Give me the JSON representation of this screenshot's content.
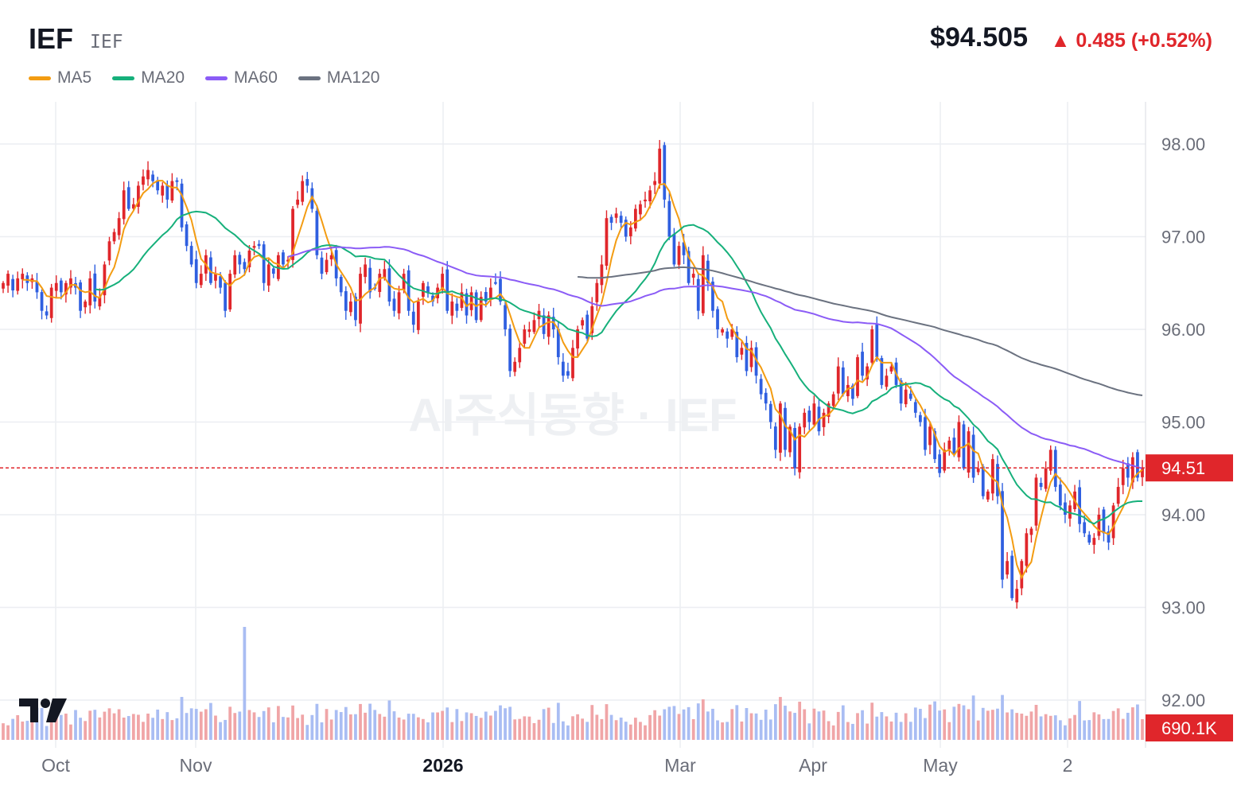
{
  "header": {
    "symbol": "IEF",
    "exchange": "IEF",
    "price": "$94.505",
    "change_arrow": "▲",
    "change": "0.485 (+0.52%)"
  },
  "legend": [
    {
      "label": "MA5",
      "color": "#f39c12"
    },
    {
      "label": "MA20",
      "color": "#16b07b"
    },
    {
      "label": "MA60",
      "color": "#8b5cf6"
    },
    {
      "label": "MA120",
      "color": "#6b7280"
    }
  ],
  "watermark": "AI주식동향 · IEF",
  "colors": {
    "up": "#e0262b",
    "down": "#2f5fe0",
    "grid": "#eceef2"
  },
  "chart_data": {
    "type": "candlestick",
    "y_ticks": [
      "98.00",
      "97.00",
      "96.00",
      "95.00",
      "94.00",
      "93.00",
      "92.00"
    ],
    "ylim": [
      91.96,
      98.45
    ],
    "x_ticks": [
      {
        "label": "Oct",
        "bold": false
      },
      {
        "label": "Nov",
        "bold": false
      },
      {
        "label": "2026",
        "bold": true
      },
      {
        "label": "Mar",
        "bold": false
      },
      {
        "label": "Apr",
        "bold": false
      },
      {
        "label": "May",
        "bold": false
      },
      {
        "label": "2",
        "bold": false
      }
    ],
    "last_price_label": "94.51",
    "last_price": 94.505,
    "volume_label": "690.1K",
    "close_series": [
      96.5,
      96.6,
      96.42,
      96.55,
      96.6,
      96.5,
      96.55,
      96.4,
      96.2,
      96.15,
      96.45,
      96.5,
      96.4,
      96.5,
      96.55,
      96.45,
      96.2,
      96.3,
      96.55,
      96.3,
      96.35,
      96.7,
      96.95,
      97.05,
      97.2,
      97.5,
      97.3,
      97.35,
      97.55,
      97.65,
      97.72,
      97.6,
      97.5,
      97.55,
      97.4,
      97.6,
      97.6,
      97.1,
      96.9,
      96.7,
      96.5,
      96.6,
      96.8,
      96.5,
      96.6,
      96.45,
      96.2,
      96.6,
      96.8,
      96.7,
      96.65,
      96.85,
      96.9,
      96.9,
      96.5,
      96.7,
      96.6,
      96.8,
      96.7,
      96.75,
      97.3,
      97.4,
      97.6,
      97.55,
      97.3,
      96.8,
      96.6,
      96.75,
      96.8,
      96.55,
      96.4,
      96.2,
      96.3,
      96.1,
      96.6,
      96.7,
      96.4,
      96.45,
      96.6,
      96.65,
      96.3,
      96.2,
      96.4,
      96.6,
      96.2,
      96.05,
      96.3,
      96.5,
      96.4,
      96.3,
      96.45,
      96.6,
      96.2,
      96.3,
      96.2,
      96.4,
      96.15,
      96.4,
      96.1,
      96.35,
      96.3,
      96.45,
      96.5,
      96.3,
      96.0,
      95.55,
      95.65,
      95.8,
      96.0,
      96.0,
      96.1,
      96.2,
      95.95,
      96.15,
      96.0,
      95.7,
      95.5,
      95.5,
      95.8,
      96.0,
      96.1,
      95.9,
      96.25,
      96.5,
      96.7,
      97.2,
      97.15,
      97.25,
      97.15,
      97.0,
      97.1,
      97.3,
      97.35,
      97.4,
      97.5,
      97.6,
      97.95,
      97.4,
      97.0,
      96.7,
      96.9,
      96.8,
      96.5,
      96.6,
      96.2,
      96.8,
      96.5,
      96.2,
      96.0,
      96.0,
      95.9,
      96.0,
      95.7,
      95.8,
      95.55,
      95.8,
      95.5,
      95.3,
      95.2,
      95.0,
      94.7,
      95.2,
      94.7,
      94.95,
      94.5,
      94.95,
      95.1,
      95.0,
      95.2,
      94.9,
      95.1,
      95.2,
      95.3,
      95.6,
      95.3,
      95.4,
      95.25,
      95.7,
      95.5,
      95.6,
      96.0,
      95.7,
      95.4,
      95.5,
      95.6,
      95.4,
      95.2,
      95.35,
      95.25,
      95.1,
      95.0,
      94.7,
      94.95,
      94.6,
      94.45,
      94.7,
      94.8,
      94.65,
      95.0,
      94.5,
      94.9,
      94.4,
      94.5,
      94.2,
      94.25,
      94.6,
      94.2,
      93.3,
      93.5,
      93.1,
      93.2,
      93.5,
      93.8,
      93.85,
      94.4,
      94.3,
      94.5,
      94.7,
      94.3,
      94.1,
      94.0,
      94.1,
      94.25,
      93.9,
      93.8,
      93.7,
      93.75,
      94.0,
      93.8,
      93.7,
      94.1,
      94.3,
      94.5,
      94.4,
      94.62,
      94.4,
      94.505
    ]
  }
}
